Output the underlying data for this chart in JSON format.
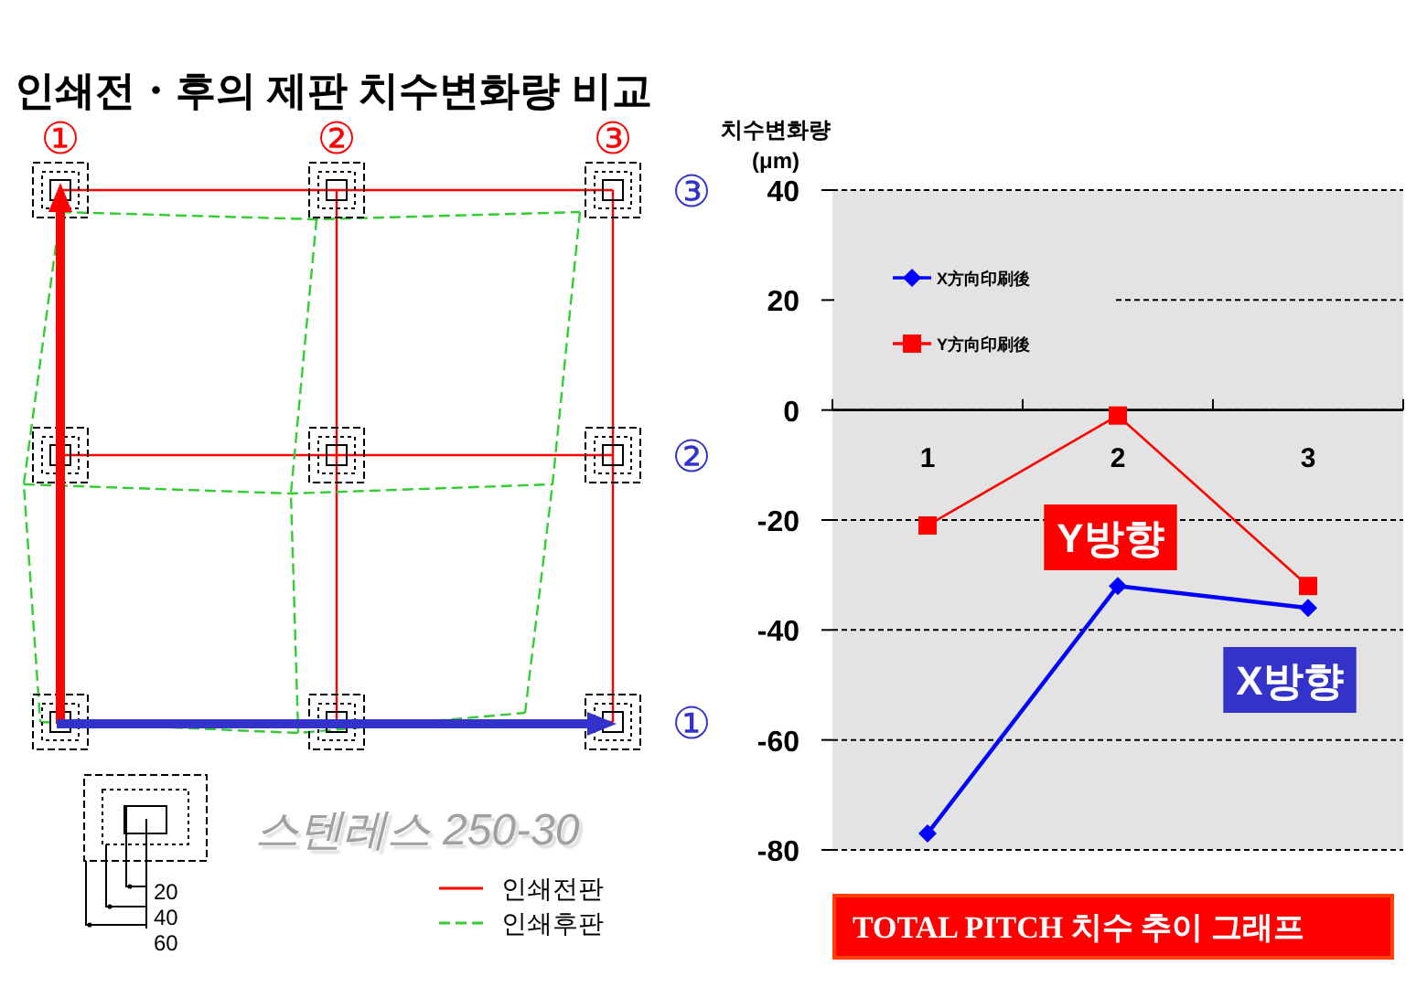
{
  "chart_data": [
    {
      "type": "other",
      "title": "인쇄전・후의 제판 치수변화량 비교",
      "categories": [
        "①",
        "②",
        "③"
      ],
      "y_categories": [
        "③",
        "②",
        "①"
      ],
      "annotations": [
        "스텐레스 250-30",
        "20",
        "40",
        "60",
        "인쇄전판",
        "인쇄후판"
      ]
    },
    {
      "type": "line",
      "title": "TOTAL PITCH 치수 추이 그래프",
      "ylabel": "치수변화량 (μm)",
      "categories": [
        "1",
        "2",
        "3"
      ],
      "series": [
        {
          "name": "X方向印刷後",
          "color": "#0000ff",
          "marker": "diamond",
          "values": [
            -77,
            -32,
            -36
          ]
        },
        {
          "name": "Y方向印刷後",
          "color": "#ff0000",
          "marker": "square",
          "values": [
            -21,
            -1,
            -32
          ]
        }
      ],
      "ylim": [
        -80,
        40
      ],
      "yticks": [
        -80,
        -60,
        -40,
        -20,
        0,
        20,
        40
      ],
      "grid": "y",
      "legend": "top left",
      "annotations": [
        "Y방향",
        "X방향"
      ]
    }
  ]
}
